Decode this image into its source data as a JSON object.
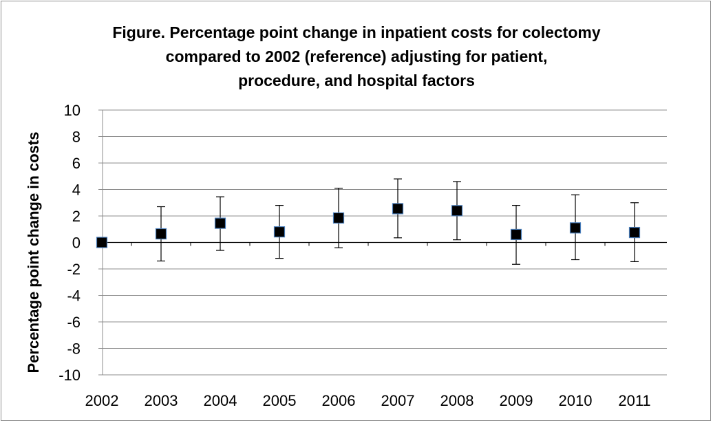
{
  "chart_data": {
    "type": "scatter",
    "title_lines": [
      "Figure.  Percentage point change in inpatient costs for colectomy",
      "compared to 2002 (reference) adjusting for patient,",
      "procedure, and hospital factors"
    ],
    "xlabel": "",
    "ylabel": "Percentage point change in costs",
    "ylim": [
      -10,
      10
    ],
    "yticks": [
      10,
      8,
      6,
      4,
      2,
      0,
      -2,
      -4,
      -6,
      -8,
      -10
    ],
    "grid": true,
    "categories": [
      "2002",
      "2003",
      "2004",
      "2005",
      "2006",
      "2007",
      "2008",
      "2009",
      "2010",
      "2011"
    ],
    "values": [
      0.0,
      0.65,
      1.45,
      0.8,
      1.85,
      2.55,
      2.4,
      0.6,
      1.1,
      0.75
    ],
    "error_low": [
      0.0,
      -1.4,
      -0.6,
      -1.2,
      -0.4,
      0.35,
      0.2,
      -1.65,
      -1.3,
      -1.45
    ],
    "error_high": [
      0.0,
      2.7,
      3.45,
      2.8,
      4.1,
      4.8,
      4.6,
      2.8,
      3.6,
      3.0
    ],
    "marker_color": "#000000",
    "marker_edge_color": "#4a7ebb"
  }
}
